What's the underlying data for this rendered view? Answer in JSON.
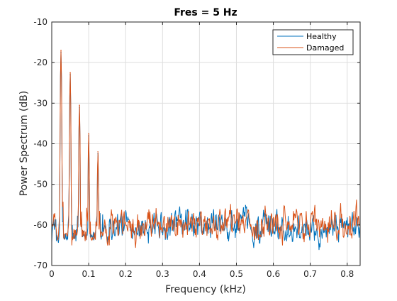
{
  "chart_data": {
    "type": "line",
    "title": "Fres = 5 Hz",
    "xlabel": "Frequency (kHz)",
    "ylabel": "Power Spectrum (dB)",
    "xlim": [
      0,
      0.835
    ],
    "ylim": [
      -70,
      -10
    ],
    "xticks": [
      "0",
      "0.1",
      "0.2",
      "0.3",
      "0.4",
      "0.5",
      "0.6",
      "0.7",
      "0.8"
    ],
    "yticks": [
      "-70",
      "-60",
      "-50",
      "-40",
      "-30",
      "-20",
      "-10"
    ],
    "grid": true,
    "legend_position": "top-right",
    "colors": {
      "Healthy": "#0072bd",
      "Damaged": "#d95319"
    },
    "series": [
      {
        "name": "Healthy",
        "peaks": [
          {
            "x": 0.025,
            "y": -17.5
          },
          {
            "x": 0.05,
            "y": -23
          },
          {
            "x": 0.075,
            "y": -31
          },
          {
            "x": 0.1,
            "y": -38
          },
          {
            "x": 0.125,
            "y": -42.5
          }
        ],
        "baseline_mean": -60.3,
        "baseline_range": [
          -66.5,
          -54.5
        ]
      },
      {
        "name": "Damaged",
        "peaks": [
          {
            "x": 0.025,
            "y": -17
          },
          {
            "x": 0.05,
            "y": -22.5
          },
          {
            "x": 0.075,
            "y": -30.5
          },
          {
            "x": 0.1,
            "y": -37.5
          },
          {
            "x": 0.125,
            "y": -42
          }
        ],
        "baseline_mean": -59.8,
        "baseline_range": [
          -66.5,
          -53.5
        ]
      }
    ]
  }
}
